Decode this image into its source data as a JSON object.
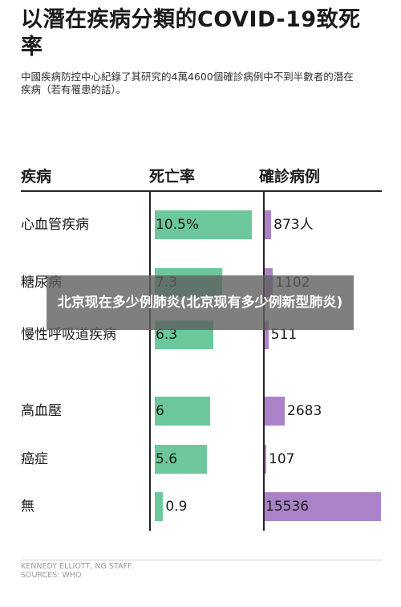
{
  "chart_data": {
    "type": "bar",
    "title": "以潛在疾病分類的COVID-19致死率",
    "subtitle": "中國疾病防控中心紀錄了其研究的4萬4600個確診病例中不到半數者的潛在疾病（若有罹患的話）。",
    "column_headers": {
      "category": "疾病",
      "fatality": "死亡率",
      "cases": "確診病例"
    },
    "categories": [
      "心血管疾病",
      "糖尿病",
      "慢性呼吸道疾病",
      "高血壓",
      "癌症",
      "無"
    ],
    "series": [
      {
        "key": "fatality",
        "values": [
          10.5,
          7.3,
          6.3,
          6,
          5.6,
          0.9
        ],
        "labels": [
          "10.5%",
          "7.3",
          "6.3",
          "6",
          "5.6",
          "0.9"
        ],
        "color": "#6cc79b"
      },
      {
        "key": "cases",
        "values": [
          873,
          1102,
          511,
          2683,
          107,
          15536
        ],
        "labels": [
          "873人",
          "1102",
          "511",
          "2683",
          "107",
          "15536"
        ],
        "color": "#ab82c8"
      }
    ],
    "grid": false
  },
  "footer": {
    "credit": "KENNEDY ELLIOTT, NG STAFF.",
    "sources": "SOURCES: WHO"
  },
  "overlay": {
    "text": "北京现在多少例肺炎(北京现有多少例新型肺炎)"
  }
}
